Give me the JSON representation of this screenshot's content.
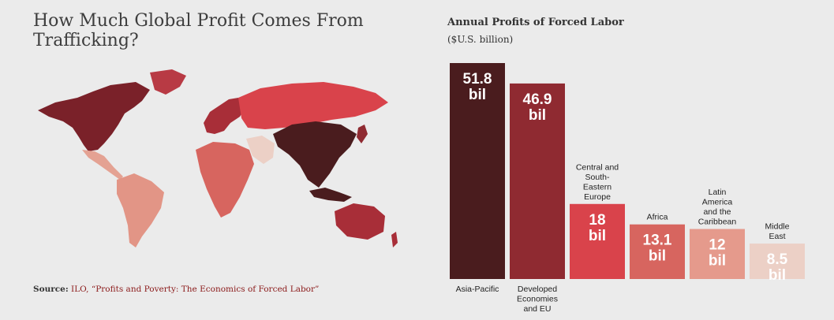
{
  "title": "How Much Global Profit Comes From Trafficking?",
  "source": {
    "label": "Source:",
    "text": "ILO, “Profits and Poverty: The Economics of Forced Labor”"
  },
  "chart_data": {
    "type": "bar",
    "title": "Annual Profits of Forced Labor",
    "subtitle": "($U.S. billion)",
    "categories": [
      "Asia-Pacific",
      "Developed Economies and EU",
      "Central and South-Eastern Europe",
      "Africa",
      "Latin America and the Caribbean",
      "Middle East"
    ],
    "values": [
      51.8,
      46.9,
      18,
      13.1,
      12,
      8.5
    ],
    "data_labels": [
      "51.8 bil",
      "46.9 bil",
      "18 bil",
      "13.1 bil",
      "12 bil",
      "8.5 bil"
    ],
    "category_label_lines": [
      [
        "Asia-Pacific"
      ],
      [
        "Developed",
        "Economies",
        "and EU"
      ],
      [
        "Central and",
        "South-",
        "Eastern",
        "Europe"
      ],
      [
        "Africa"
      ],
      [
        "Latin",
        "America",
        "and the",
        "Caribbean"
      ],
      [
        "Middle",
        "East"
      ]
    ],
    "label_positions": [
      "below",
      "below",
      "above",
      "above",
      "above",
      "above"
    ],
    "colors": [
      "#4a1c1e",
      "#8f2a31",
      "#d9434b",
      "#d7655f",
      "#e59a8c",
      "#ecd0c6"
    ],
    "ylim": [
      0,
      51.8
    ],
    "grid": false,
    "legend": "none"
  }
}
